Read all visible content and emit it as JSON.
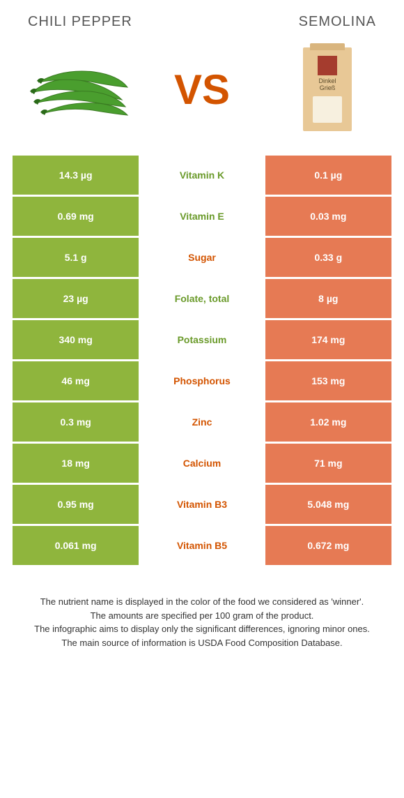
{
  "header": {
    "left_title": "Chili pepper",
    "right_title": "Semolina",
    "vs_text": "VS"
  },
  "colors": {
    "left_bg": "#8fb53d",
    "right_bg": "#e67a54",
    "mid_green": "#6a9a2a",
    "mid_orange": "#d35400",
    "row_border": "#ffffff"
  },
  "bag": {
    "line1": "Dinkel",
    "line2": "Grieß"
  },
  "rows": [
    {
      "left": "14.3 µg",
      "label": "Vitamin K",
      "right": "0.1 µg",
      "winner": "left"
    },
    {
      "left": "0.69 mg",
      "label": "Vitamin E",
      "right": "0.03 mg",
      "winner": "left"
    },
    {
      "left": "5.1 g",
      "label": "Sugar",
      "right": "0.33 g",
      "winner": "right"
    },
    {
      "left": "23 µg",
      "label": "Folate, total",
      "right": "8 µg",
      "winner": "left"
    },
    {
      "left": "340 mg",
      "label": "Potassium",
      "right": "174 mg",
      "winner": "left"
    },
    {
      "left": "46 mg",
      "label": "Phosphorus",
      "right": "153 mg",
      "winner": "right"
    },
    {
      "left": "0.3 mg",
      "label": "Zinc",
      "right": "1.02 mg",
      "winner": "right"
    },
    {
      "left": "18 mg",
      "label": "Calcium",
      "right": "71 mg",
      "winner": "right"
    },
    {
      "left": "0.95 mg",
      "label": "Vitamin B3",
      "right": "5.048 mg",
      "winner": "right"
    },
    {
      "left": "0.061 mg",
      "label": "Vitamin B5",
      "right": "0.672 mg",
      "winner": "right"
    }
  ],
  "footnote": {
    "l1": "The nutrient name is displayed in the color of the food we considered as 'winner'.",
    "l2": "The amounts are specified per 100 gram of the product.",
    "l3": "The infographic aims to display only the significant differences, ignoring minor ones.",
    "l4": "The main source of information is USDA Food Composition Database."
  }
}
